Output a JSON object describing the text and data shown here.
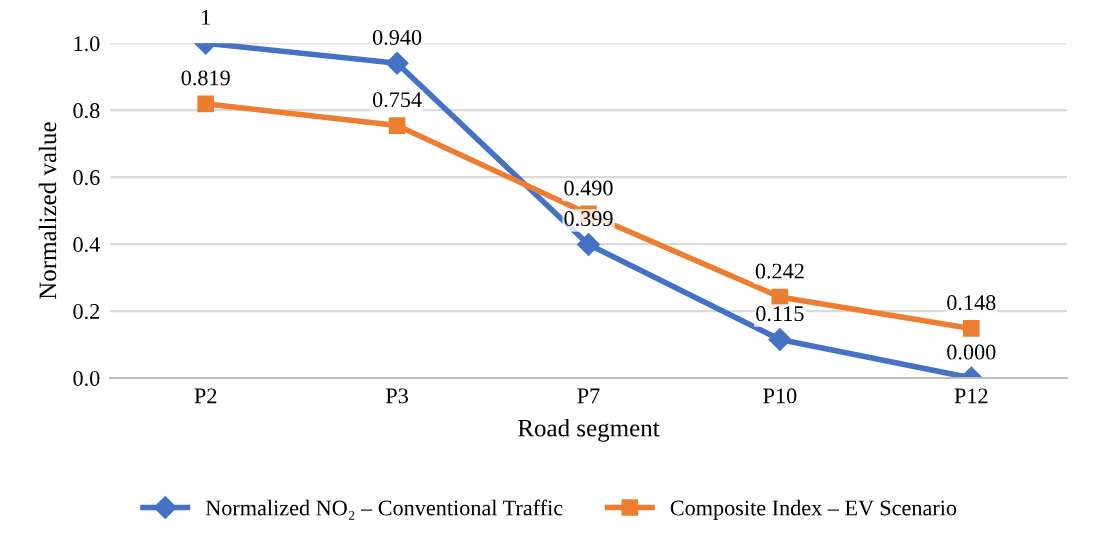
{
  "chart_data": {
    "type": "line",
    "xlabel": "Road segment",
    "ylabel": "Normalized value",
    "categories": [
      "P2",
      "P3",
      "P7",
      "P10",
      "P12"
    ],
    "series": [
      {
        "name": "Normalized NO₂ – Conventional Traffic",
        "color": "#4472c4",
        "marker": "diamond",
        "values": [
          1,
          0.94,
          0.399,
          0.115,
          0.0
        ],
        "value_labels": [
          "1",
          "0.940",
          "0.399",
          "0.115",
          "0.000"
        ]
      },
      {
        "name": "Composite Index – EV Scenario",
        "color": "#ed7d31",
        "marker": "square",
        "values": [
          0.819,
          0.754,
          0.49,
          0.242,
          0.148
        ],
        "value_labels": [
          "0.819",
          "0.754",
          "0.490",
          "0.242",
          "0.148"
        ]
      }
    ],
    "ylim": [
      0,
      1.0
    ],
    "yticks": [
      {
        "value": 0,
        "label": "0.0"
      },
      {
        "value": 0.2,
        "label": "0.2"
      },
      {
        "value": 0.4,
        "label": "0.4"
      },
      {
        "value": 0.6,
        "label": "0.6"
      },
      {
        "value": 0.8,
        "label": "0.8"
      },
      {
        "value": 1.0,
        "label": "1.0"
      }
    ],
    "grid": "y",
    "legend": "bottom",
    "line_style": "solid"
  }
}
